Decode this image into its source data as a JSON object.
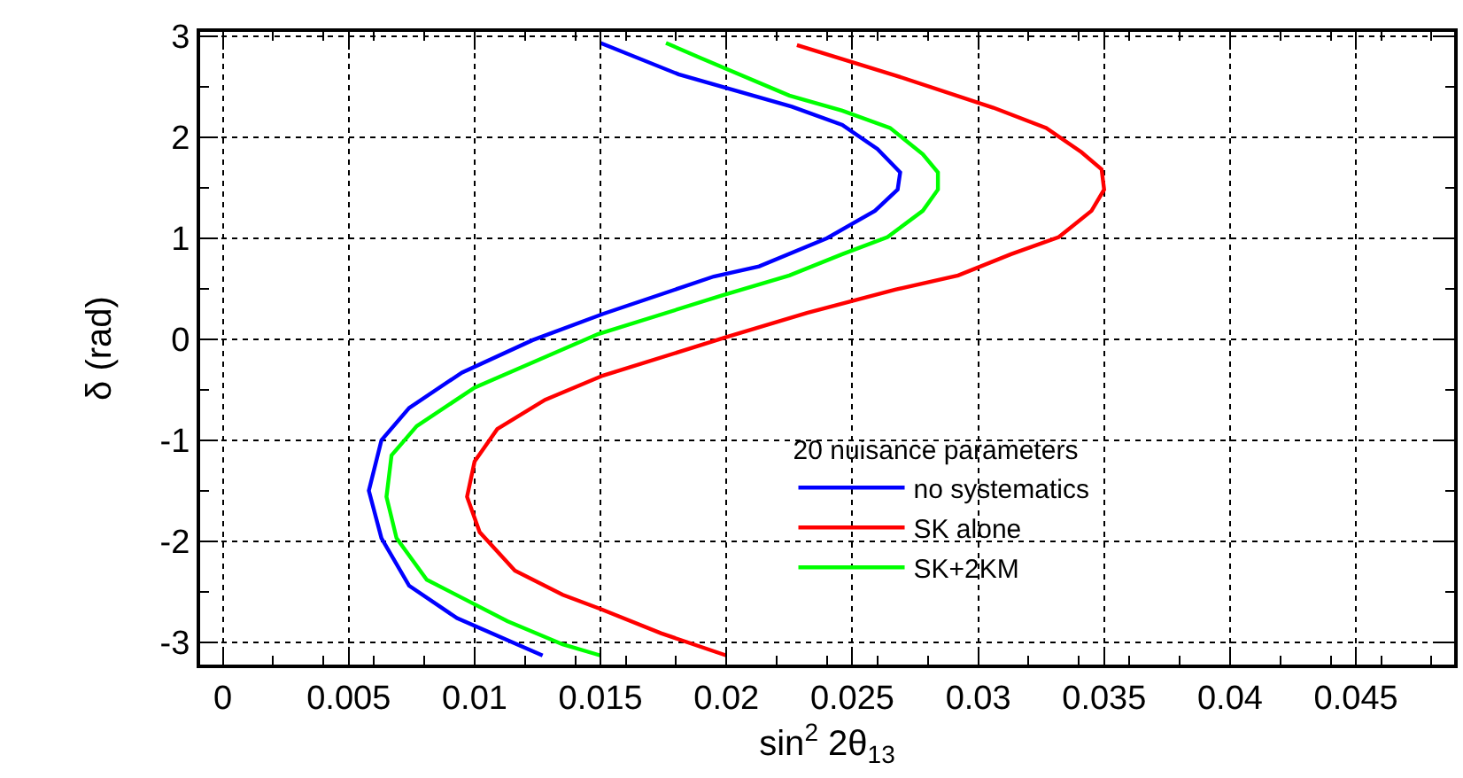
{
  "chart_data": {
    "type": "line",
    "xlabel": "sin$^{2}$ 2θ$_{13}$",
    "ylabel": "δ (rad)",
    "legend_title": "20 nuisance parameters",
    "xlim": [
      -0.0009,
      0.0489
    ],
    "xticks": [
      0,
      0.005,
      0.01,
      0.015,
      0.02,
      0.025,
      0.03,
      0.035,
      0.04,
      0.045
    ],
    "ylim": [
      -3.22,
      3.04
    ],
    "yticks": [
      -3,
      -2,
      -1,
      0,
      1,
      2,
      3
    ],
    "grid": true,
    "legend": "right",
    "line_style": "solid",
    "series": [
      {
        "name": "no systematics",
        "color": "#0000ff",
        "x": [
          0.015,
          0.0181,
          0.0226,
          0.0246,
          0.026,
          0.0269,
          0.0268,
          0.0259,
          0.024,
          0.0213,
          0.0195,
          0.0151,
          0.0123,
          0.0095,
          0.0074,
          0.0063,
          0.0058,
          0.0063,
          0.0074,
          0.0093,
          0.0127
        ],
        "values": [
          2.93,
          2.62,
          2.3,
          2.12,
          1.88,
          1.65,
          1.48,
          1.27,
          1.0,
          0.72,
          0.62,
          0.25,
          -0.01,
          -0.33,
          -0.68,
          -1.0,
          -1.5,
          -1.97,
          -2.44,
          -2.76,
          -3.13
        ]
      },
      {
        "name": "SK alone",
        "color": "#ff0000",
        "x": [
          0.0228,
          0.0267,
          0.0306,
          0.0327,
          0.0341,
          0.0349,
          0.035,
          0.0345,
          0.0332,
          0.0313,
          0.0292,
          0.0267,
          0.0232,
          0.02,
          0.0151,
          0.0128,
          0.0109,
          0.01,
          0.0097,
          0.0102,
          0.0116,
          0.0135,
          0.015,
          0.0174,
          0.02
        ],
        "values": [
          2.91,
          2.61,
          2.29,
          2.09,
          1.85,
          1.68,
          1.48,
          1.27,
          1.01,
          0.84,
          0.63,
          0.49,
          0.26,
          0.02,
          -0.36,
          -0.6,
          -0.89,
          -1.21,
          -1.56,
          -1.91,
          -2.29,
          -2.53,
          -2.67,
          -2.91,
          -3.13
        ]
      },
      {
        "name": "SK+2KM",
        "color": "#00ff00",
        "x": [
          0.0176,
          0.019,
          0.0225,
          0.0246,
          0.0265,
          0.0278,
          0.0284,
          0.0284,
          0.0278,
          0.0264,
          0.0246,
          0.0225,
          0.0198,
          0.0149,
          0.01,
          0.0077,
          0.0067,
          0.0065,
          0.0069,
          0.0081,
          0.0113,
          0.0135,
          0.015
        ],
        "values": [
          2.93,
          2.78,
          2.41,
          2.26,
          2.09,
          1.83,
          1.65,
          1.48,
          1.27,
          1.01,
          0.84,
          0.63,
          0.43,
          0.05,
          -0.48,
          -0.86,
          -1.15,
          -1.56,
          -1.97,
          -2.38,
          -2.79,
          -3.02,
          -3.13
        ]
      }
    ]
  }
}
